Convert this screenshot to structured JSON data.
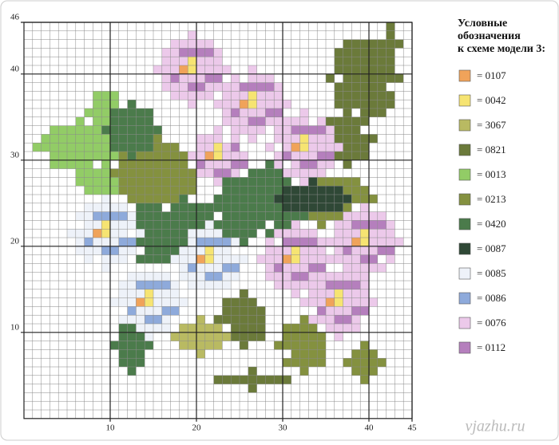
{
  "legend": {
    "title": [
      "Условные",
      "обозначения",
      "к схеме модели 3:"
    ],
    "items": [
      {
        "label": "= 0107",
        "color": "#f0a35a"
      },
      {
        "label": "= 0042",
        "color": "#f6e472"
      },
      {
        "label": "= 3067",
        "color": "#b9ba62"
      },
      {
        "label": "= 0821",
        "color": "#6b7a3a"
      },
      {
        "label": "= 0013",
        "color": "#92cc66"
      },
      {
        "label": "= 0213",
        "color": "#84913f"
      },
      {
        "label": "= 0420",
        "color": "#4b7b4b"
      },
      {
        "label": "= 0087",
        "color": "#2f4836"
      },
      {
        "label": "= 0085",
        "color": "#eef2f9"
      },
      {
        "label": "= 0086",
        "color": "#8eaadb"
      },
      {
        "label": "= 0076",
        "color": "#ecc9ea"
      },
      {
        "label": "= 0112",
        "color": "#b57fbd"
      }
    ]
  },
  "grid": {
    "columns": 45,
    "rows": 46,
    "x_ticks": [
      10,
      20,
      30,
      40,
      45
    ],
    "y_ticks": [
      10,
      20,
      30,
      40,
      46
    ]
  },
  "watermark": "vjazhu.ru"
}
